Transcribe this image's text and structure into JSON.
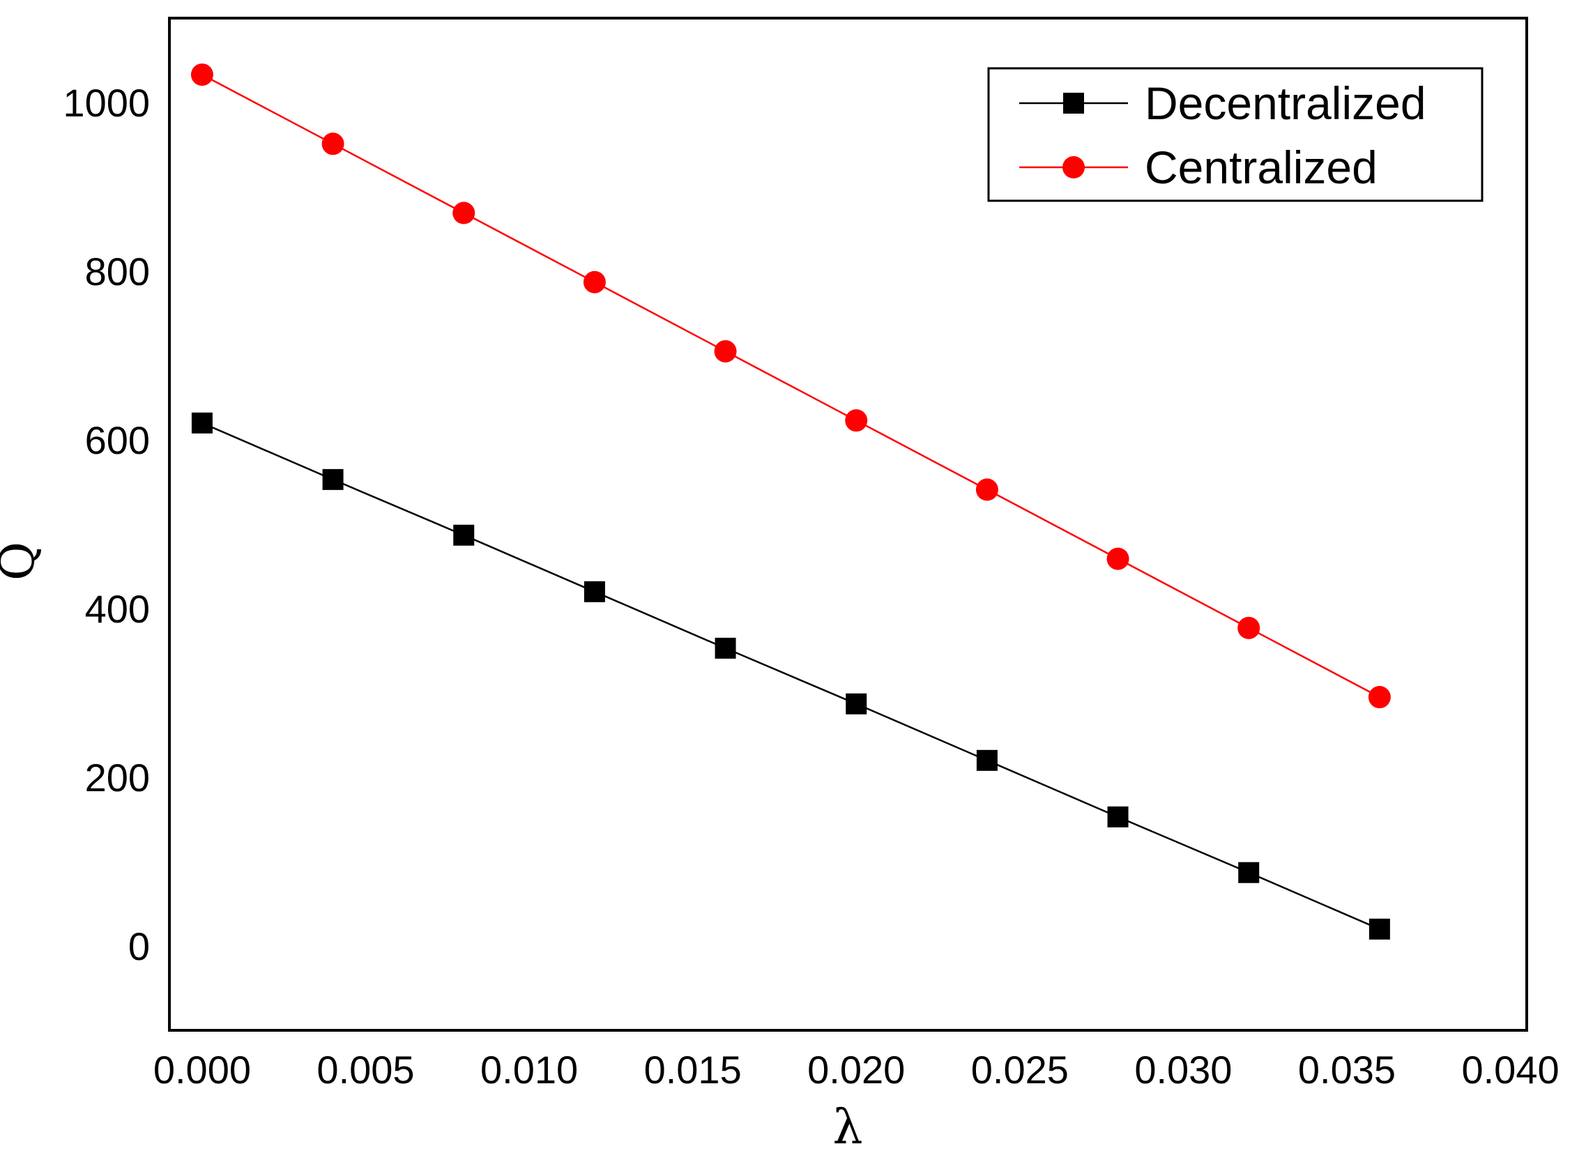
{
  "chart_data": {
    "type": "line",
    "title": "",
    "xlabel": "λ",
    "ylabel": "Q",
    "xlim": [
      -0.001,
      0.0405
    ],
    "ylim": [
      -100,
      1100
    ],
    "grid": false,
    "legend_position": "top-right",
    "x_ticks": [
      "0.000",
      "0.005",
      "0.010",
      "0.015",
      "0.020",
      "0.025",
      "0.030",
      "0.035",
      "0.040"
    ],
    "y_ticks": [
      "0",
      "200",
      "400",
      "600",
      "800",
      "1000"
    ],
    "x": [
      0.0,
      0.004,
      0.008,
      0.012,
      0.016,
      0.02,
      0.024,
      0.028,
      0.032,
      0.036
    ],
    "series": [
      {
        "name": "Decentralized",
        "color": "#000000",
        "marker": "square",
        "values": [
          620,
          553,
          487,
          420,
          353,
          287,
          220,
          153,
          87,
          20
        ]
      },
      {
        "name": "Centralized",
        "color": "#ff0000",
        "marker": "circle",
        "values": [
          1033,
          951,
          869,
          787,
          705,
          623,
          541,
          459,
          377,
          295
        ]
      }
    ]
  }
}
